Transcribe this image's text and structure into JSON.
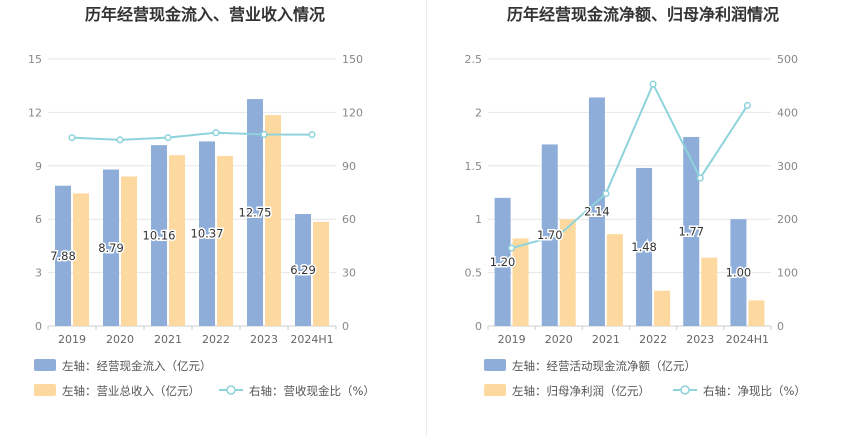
{
  "chart_data": [
    {
      "type": "bar",
      "title": "历年经营现金流入、营业收入情况",
      "categories": [
        "2019",
        "2020",
        "2021",
        "2022",
        "2023",
        "2024H1"
      ],
      "ylim_left": [
        0,
        15
      ],
      "yticks_left": [
        "0",
        "3",
        "6",
        "9",
        "12",
        "15"
      ],
      "ylim_right": [
        0,
        150
      ],
      "yticks_right": [
        "0",
        "30",
        "60",
        "90",
        "120",
        "150"
      ],
      "grid": true,
      "legend_position": "bottom-left",
      "series": [
        {
          "name": "左轴：经营现金流入（亿元）",
          "type": "bar",
          "axis": "left",
          "color": "#8eadd9",
          "values": [
            7.88,
            8.79,
            10.16,
            10.37,
            12.75,
            6.29
          ],
          "labels": [
            "7.88",
            "8.79",
            "10.16",
            "10.37",
            "12.75",
            "6.29"
          ]
        },
        {
          "name": "左轴：营业总收入（亿元）",
          "type": "bar",
          "axis": "left",
          "color": "#fdd9a0",
          "values": [
            7.45,
            8.4,
            9.6,
            9.55,
            11.85,
            5.85
          ]
        },
        {
          "name": "右轴：营收现金比（%）",
          "type": "line",
          "axis": "right",
          "color": "#8ed3dc",
          "values": [
            105.8,
            104.6,
            105.8,
            108.6,
            107.6,
            107.5
          ]
        }
      ]
    },
    {
      "type": "bar",
      "title": "历年经营现金流净额、归母净利润情况",
      "categories": [
        "2019",
        "2020",
        "2021",
        "2022",
        "2023",
        "2024H1"
      ],
      "ylim_left": [
        0,
        2.5
      ],
      "yticks_left": [
        "0",
        "0.5",
        "1",
        "1.5",
        "2",
        "2.5"
      ],
      "ylim_right": [
        0,
        500
      ],
      "yticks_right": [
        "0",
        "100",
        "200",
        "300",
        "400",
        "500"
      ],
      "grid": true,
      "legend_position": "bottom-left",
      "series": [
        {
          "name": "左轴：经营活动现金流净额（亿元）",
          "type": "bar",
          "axis": "left",
          "color": "#8eadd9",
          "values": [
            1.2,
            1.7,
            2.14,
            1.48,
            1.77,
            1.0
          ],
          "labels": [
            "1.20",
            "1.70",
            "2.14",
            "1.48",
            "1.77",
            "1.00"
          ]
        },
        {
          "name": "左轴：归母净利润（亿元）",
          "type": "bar",
          "axis": "left",
          "color": "#fdd9a0",
          "values": [
            0.82,
            1.0,
            0.86,
            0.33,
            0.64,
            0.24
          ]
        },
        {
          "name": "右轴：净现比（%）",
          "type": "line",
          "axis": "right",
          "color": "#8ed3dc",
          "values": [
            146,
            170,
            248,
            453,
            277,
            413
          ]
        }
      ]
    }
  ]
}
